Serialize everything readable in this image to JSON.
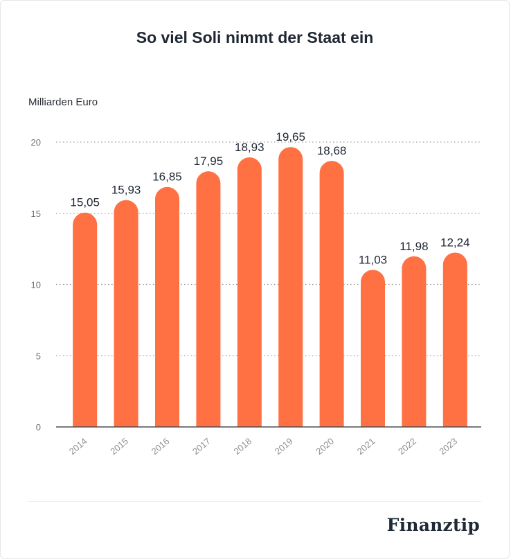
{
  "chart_data": {
    "type": "bar",
    "title": "So viel Soli nimmt der Staat ein",
    "ylabel": "Milliarden Euro",
    "xlabel": "",
    "categories": [
      "2014",
      "2015",
      "2016",
      "2017",
      "2018",
      "2019",
      "2020",
      "2021",
      "2022",
      "2023"
    ],
    "values": [
      15.05,
      15.93,
      16.85,
      17.95,
      18.93,
      19.65,
      18.68,
      11.03,
      11.98,
      12.24
    ],
    "value_labels": [
      "15,05",
      "15,93",
      "16,85",
      "17,95",
      "18,93",
      "19,65",
      "18,68",
      "11,03",
      "11,98",
      "12,24"
    ],
    "yticks": [
      0,
      5,
      10,
      15,
      20
    ],
    "ylim": [
      0,
      20
    ],
    "grid": true,
    "legend": "none",
    "bar_color": "#ff7043"
  },
  "brand": "Finanztip"
}
